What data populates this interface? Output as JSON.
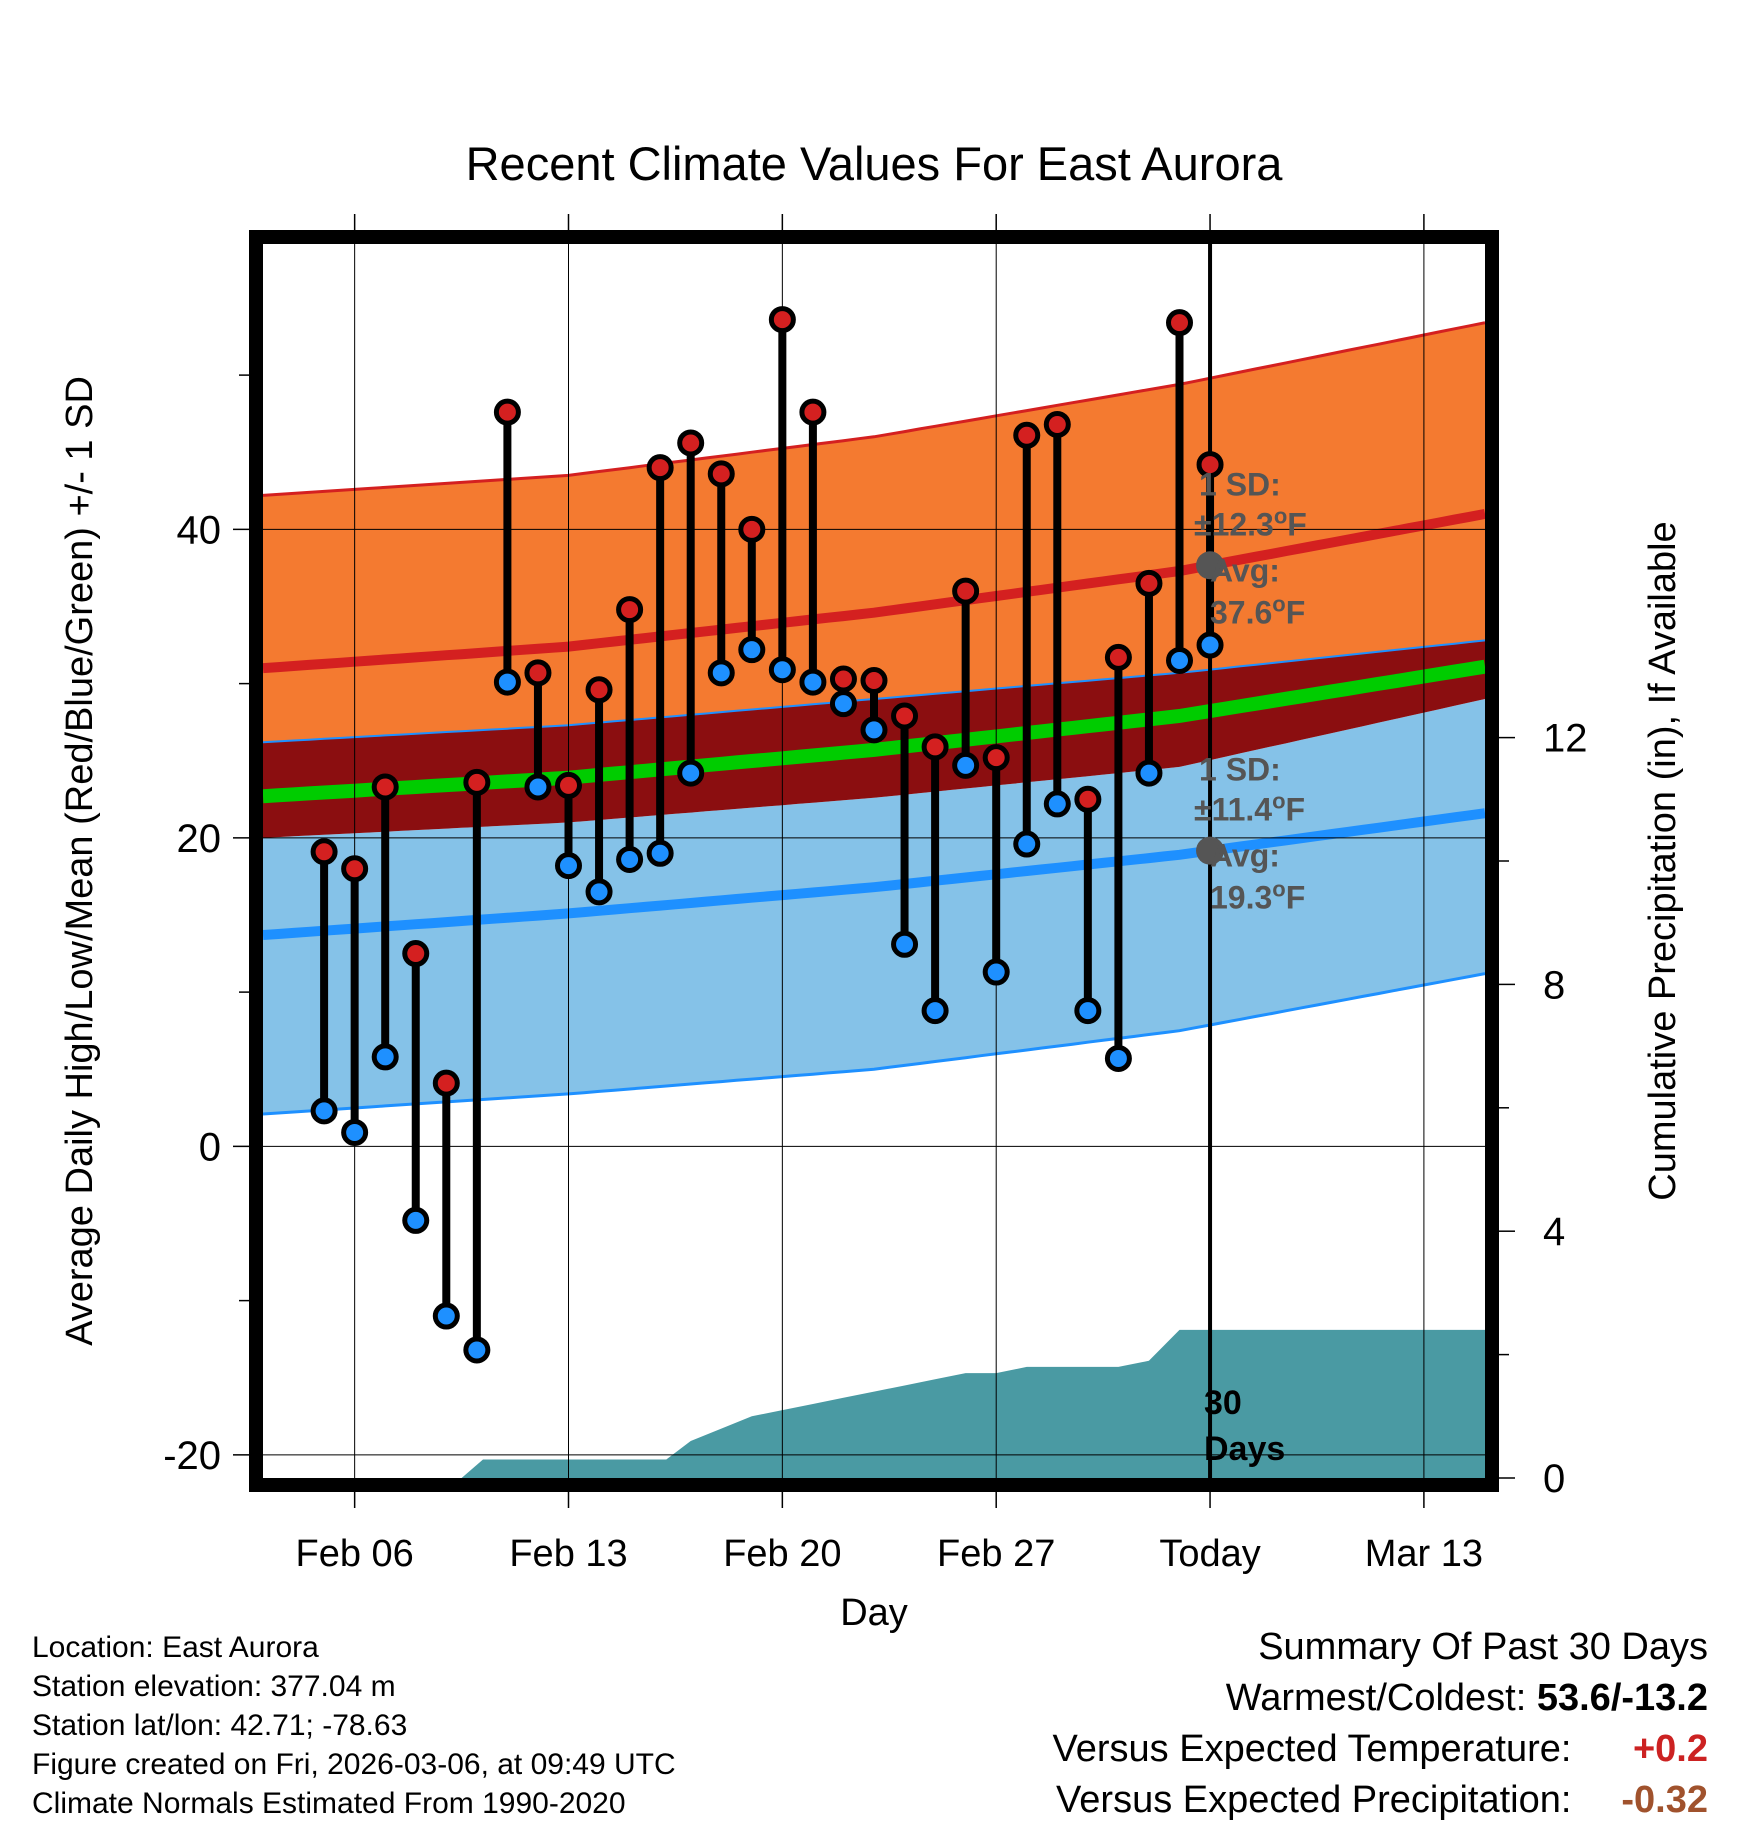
{
  "chart_data": {
    "type": "line",
    "title": "Recent Climate Values For East Aurora",
    "xlabel": "Day",
    "ylabel": "Average Daily High/Low/Mean (Red/Blue/Green) +/- 1 SD",
    "y2label": "Cumulative Precipitation (in), If Available",
    "x_range_days": [
      0,
      40
    ],
    "ylim": [
      -21.5,
      58.5
    ],
    "y_ticks": [
      -20,
      0,
      20,
      40
    ],
    "y2lim": [
      0,
      20
    ],
    "y2_ticks": [
      0,
      4,
      8,
      12
    ],
    "x_ticks": [
      {
        "day": 3,
        "label": "Feb 06"
      },
      {
        "day": 10,
        "label": "Feb 13"
      },
      {
        "day": 17,
        "label": "Feb 20"
      },
      {
        "day": 24,
        "label": "Feb 27"
      },
      {
        "day": 31,
        "label": "Today"
      },
      {
        "day": 38,
        "label": "Mar 13"
      }
    ],
    "today_day": 31,
    "normals": {
      "day": [
        0,
        10,
        20,
        30,
        40
      ],
      "high_avg": [
        31.0,
        32.4,
        34.6,
        37.3,
        41.0
      ],
      "high_upper": [
        42.2,
        43.5,
        46.0,
        49.4,
        53.4
      ],
      "low_avg": [
        13.7,
        15.1,
        16.8,
        18.9,
        21.6
      ],
      "low_lower": [
        2.1,
        3.4,
        5.0,
        7.5,
        11.2
      ],
      "mean_upper": [
        26.2,
        27.3,
        29.0,
        30.7,
        32.8
      ],
      "mean": [
        22.7,
        23.9,
        25.7,
        27.9,
        31.1
      ],
      "mean_lower": [
        20.0,
        21.0,
        22.6,
        24.6,
        29.0
      ]
    },
    "series": [
      {
        "name": "High",
        "day": [
          2,
          3,
          4,
          5,
          6,
          7,
          8,
          9,
          10,
          11,
          12,
          13,
          14,
          15,
          16,
          17,
          18,
          19,
          20,
          21,
          22,
          23,
          24,
          25,
          26,
          27,
          28,
          29
        ],
        "values": [
          19.1,
          18.0,
          23.3,
          12.5,
          4.1,
          23.6,
          47.6,
          30.7,
          23.4,
          29.6,
          34.8,
          44.0,
          45.6,
          43.6,
          40.0,
          53.6,
          47.6,
          30.3,
          30.2,
          27.9,
          25.9,
          36.0,
          25.2,
          46.1,
          46.8,
          22.5,
          31.7,
          36.5
        ]
      },
      {
        "name": "Low",
        "day": [
          2,
          3,
          4,
          5,
          6,
          7,
          8,
          9,
          10,
          11,
          12,
          13,
          14,
          15,
          16,
          17,
          18,
          19,
          20,
          21,
          22,
          23,
          24,
          25,
          26,
          27,
          28,
          29
        ],
        "values": [
          2.3,
          0.9,
          5.8,
          -4.8,
          -11.0,
          -13.2,
          30.1,
          23.3,
          18.2,
          16.5,
          18.6,
          19.0,
          24.2,
          30.7,
          32.2,
          30.9,
          30.1,
          28.7,
          27.0,
          13.1,
          8.8,
          24.7,
          11.3,
          19.6,
          22.2,
          8.8,
          5.7,
          24.2
        ]
      },
      {
        "name": "High (recent)",
        "day": [
          30,
          31
        ],
        "values": [
          53.4,
          44.2
        ]
      },
      {
        "name": "Low (recent)",
        "day": [
          30,
          31
        ],
        "values": [
          31.5,
          32.5
        ]
      }
    ],
    "precipitation": {
      "day": [
        0,
        6.5,
        7.2,
        13.2,
        14,
        15,
        16,
        17,
        18,
        19,
        20,
        21,
        22,
        23,
        24,
        25,
        26,
        27,
        28,
        29,
        30,
        40
      ],
      "cumulative": [
        0,
        0,
        0.3,
        0.3,
        0.6,
        0.8,
        1.0,
        1.1,
        1.2,
        1.3,
        1.4,
        1.5,
        1.6,
        1.7,
        1.7,
        1.8,
        1.8,
        1.8,
        1.8,
        1.9,
        2.4,
        2.4
      ]
    },
    "annotations": {
      "high_sd": "1 SD:",
      "high_sd_val": "±12.3",
      "high_avg_label": "Avg:",
      "high_avg_val": "37.6",
      "low_sd": "1 SD:",
      "low_sd_val": "±11.4",
      "low_avg_label": "Avg:",
      "low_avg_val": "19.3",
      "unit": "F",
      "precip_label_1": "30",
      "precip_label_2": "Days"
    },
    "colors": {
      "high_band": "#f47a30",
      "high_line": "#d42020",
      "low_band": "#85c2e8",
      "low_line": "#1e90ff",
      "mean_band": "#8b0e10",
      "mean_line": "#00cc00",
      "precip": "#4a9aa3",
      "high_marker": "#d42020",
      "low_marker": "#1e90ff",
      "annotation": "#555555"
    }
  },
  "info": {
    "location": "Location: East Aurora",
    "elevation": "Station elevation: 377.04 m",
    "latlon": "Station lat/lon: 42.71; -78.63",
    "created": "Figure created on Fri, 2026-03-06, at 09:49 UTC",
    "normals": "Climate Normals Estimated From 1990-2020"
  },
  "summary": {
    "title": "Summary Of Past 30 Days",
    "warm_cold_label": "Warmest/Coldest:",
    "warm_cold_value": "53.6/-13.2",
    "temp_label": "Versus Expected Temperature:",
    "temp_value": "+0.2",
    "temp_color": "#cc2222",
    "precip_label": "Versus Expected Precipitation:",
    "precip_value": "-0.32",
    "precip_color": "#a0522d"
  }
}
